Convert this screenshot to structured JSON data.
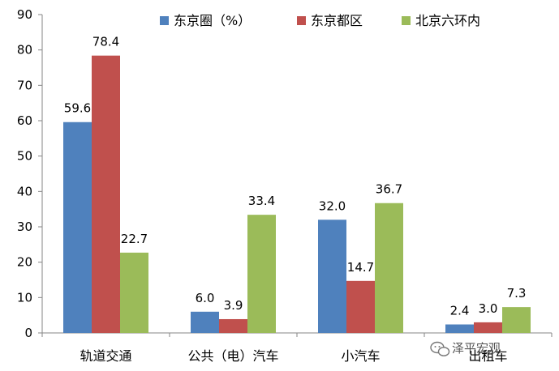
{
  "chart_data": {
    "type": "bar",
    "title": "",
    "xlabel": "",
    "ylabel": "",
    "ylim": [
      0,
      90
    ],
    "yticks": [
      0,
      10,
      20,
      30,
      40,
      50,
      60,
      70,
      80,
      90
    ],
    "grid": false,
    "legend_position": "top",
    "categories": [
      "轨道交通",
      "公共（电）汽车",
      "小汽车",
      "出租车"
    ],
    "series": [
      {
        "name": "东京圈（%）",
        "color": "#4F81BD",
        "values": [
          59.6,
          6.0,
          32.0,
          2.4
        ]
      },
      {
        "name": "东京都区",
        "color": "#C0504D",
        "values": [
          78.4,
          3.9,
          14.7,
          3.0
        ]
      },
      {
        "name": "北京六环内",
        "color": "#9BBB59",
        "values": [
          22.7,
          33.4,
          36.7,
          7.3
        ]
      }
    ]
  },
  "watermark": {
    "text": "泽平宏观",
    "icon": "wechat-icon"
  }
}
